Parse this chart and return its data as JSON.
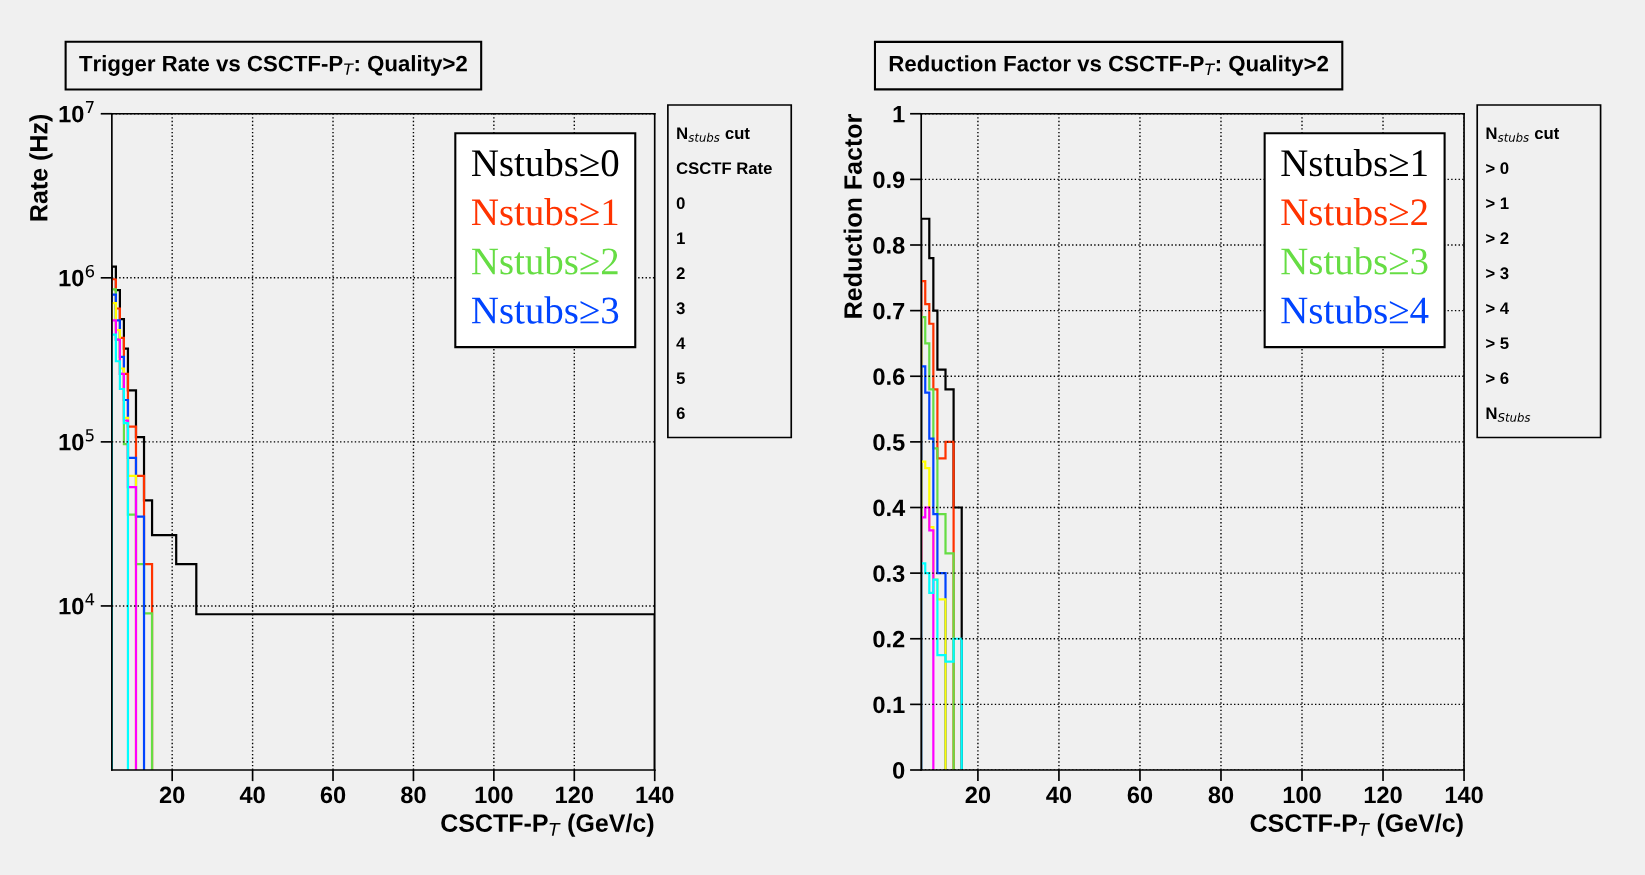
{
  "chart_data": [
    {
      "type": "histogram",
      "title": "Trigger Rate vs CSCTF-P$_{T}$: Quality>2",
      "xlabel": "CSCTF-P$_{T}$ (GeV/c)",
      "ylabel": "Rate (Hz)",
      "log": true,
      "grid": true,
      "legend": "top right",
      "bins": [
        5,
        6,
        7,
        8,
        9,
        11,
        13,
        15,
        21,
        26,
        140
      ],
      "xlim": [
        5,
        140
      ],
      "xticks": [
        20,
        40,
        60,
        80,
        100,
        120,
        140
      ],
      "ylim": [
        1000,
        10000000
      ],
      "yticks": [
        {
          "value": 10000,
          "label": "10$^{4}$"
        },
        {
          "value": 100000,
          "label": "10$^{5}$"
        },
        {
          "value": 1000000,
          "label": "10$^{6}$"
        },
        {
          "value": 10000000,
          "label": "10$^{7}$"
        }
      ],
      "series": [
        {
          "name": "Nstubs≥0",
          "color": "#000000",
          "values": [
            1170000,
            840000,
            560000,
            370000,
            206000,
            107000,
            44000,
            27000,
            18000,
            8900
          ]
        },
        {
          "name": "Nstubs≥1",
          "color": "#ff3300",
          "bins": [
            5,
            6,
            7,
            8,
            9,
            11,
            13,
            15
          ],
          "values": [
            980000,
            650000,
            430000,
            260000,
            124000,
            62000,
            18000
          ]
        },
        {
          "name": "Nstubs≥2",
          "color": "#66dd44",
          "bins": [
            5,
            6,
            7,
            8,
            9,
            11,
            13,
            15
          ],
          "values": [
            850000,
            420000,
            260000,
            97000,
            36000,
            18000,
            9000
          ]
        },
        {
          "name": "Nstubs≥3",
          "color": "#0044ff",
          "bins": [
            5,
            6,
            7,
            8,
            9,
            11,
            13
          ],
          "values": [
            790000,
            550000,
            330000,
            180000,
            80000,
            35000
          ]
        },
        {
          "color": "#ffff00",
          "bins": [
            5,
            6,
            7,
            8,
            9,
            11
          ],
          "values": [
            700000,
            480000,
            280000,
            140000,
            62000
          ]
        },
        {
          "color": "#ff00ff",
          "bins": [
            5,
            6,
            7,
            8,
            9,
            11
          ],
          "values": [
            550000,
            420000,
            260000,
            135000,
            53000
          ]
        },
        {
          "color": "#00ffff",
          "bins": [
            5,
            6,
            7,
            8,
            9
          ],
          "values": [
            450000,
            310000,
            210000,
            130000
          ]
        }
      ],
      "annotations": [
        "N$_{stubs}$ cut",
        "CSCTF Rate",
        "0",
        "1",
        "2",
        "3",
        "4",
        "5",
        "6"
      ]
    },
    {
      "type": "histogram",
      "title": "Reduction Factor vs CSCTF-P$_{T}$: Quality>2",
      "xlabel": "CSCTF-P$_{T}$ (GeV/c)",
      "ylabel": "Reduction Factor",
      "grid": true,
      "legend": "top right",
      "bins": [
        6,
        7,
        8,
        9,
        10,
        12,
        14,
        16
      ],
      "xlim": [
        6,
        140
      ],
      "xticks": [
        20,
        40,
        60,
        80,
        100,
        120,
        140
      ],
      "ylim": [
        0,
        1
      ],
      "yticks": [
        0,
        0.1,
        0.2,
        0.3,
        0.4,
        0.5,
        0.6,
        0.7,
        0.8,
        0.9,
        1
      ],
      "series": [
        {
          "name": "Nstubs≥1",
          "color": "#000000",
          "values": [
            0.84,
            0.84,
            0.78,
            0.7,
            0.61,
            0.58,
            0.4
          ]
        },
        {
          "name": "Nstubs≥2",
          "color": "#ff3300",
          "bins": [
            6,
            7,
            8,
            9,
            10,
            12,
            14
          ],
          "values": [
            0.745,
            0.71,
            0.68,
            0.58,
            0.475,
            0.5
          ]
        },
        {
          "name": "Nstubs≥3",
          "color": "#66dd44",
          "bins": [
            6,
            7,
            8,
            9,
            10,
            12,
            14
          ],
          "values": [
            0.69,
            0.65,
            0.58,
            0.49,
            0.39,
            0.33
          ]
        },
        {
          "name": "Nstubs≥4",
          "color": "#0044ff",
          "bins": [
            6,
            7,
            8,
            9,
            10,
            12
          ],
          "values": [
            0.615,
            0.575,
            0.505,
            0.39,
            0.3
          ]
        },
        {
          "color": "#ffff00",
          "bins": [
            6,
            7,
            8,
            9,
            10,
            12
          ],
          "values": [
            0.47,
            0.46,
            0.37,
            0.29,
            0.26
          ]
        },
        {
          "color": "#ff00ff",
          "bins": [
            6,
            7,
            8,
            9
          ],
          "values": [
            0.385,
            0.4,
            0.365
          ]
        },
        {
          "color": "#00ffff",
          "values": [
            0.315,
            0.3,
            0.27,
            0.29,
            0.175,
            0.165,
            0.2
          ]
        }
      ],
      "annotations": [
        "N$_{stubs}$ cut",
        "> 0",
        "> 1",
        "> 2",
        "> 3",
        "> 4",
        "> 5",
        "> 6",
        "N$_{Stubs}$"
      ]
    }
  ]
}
